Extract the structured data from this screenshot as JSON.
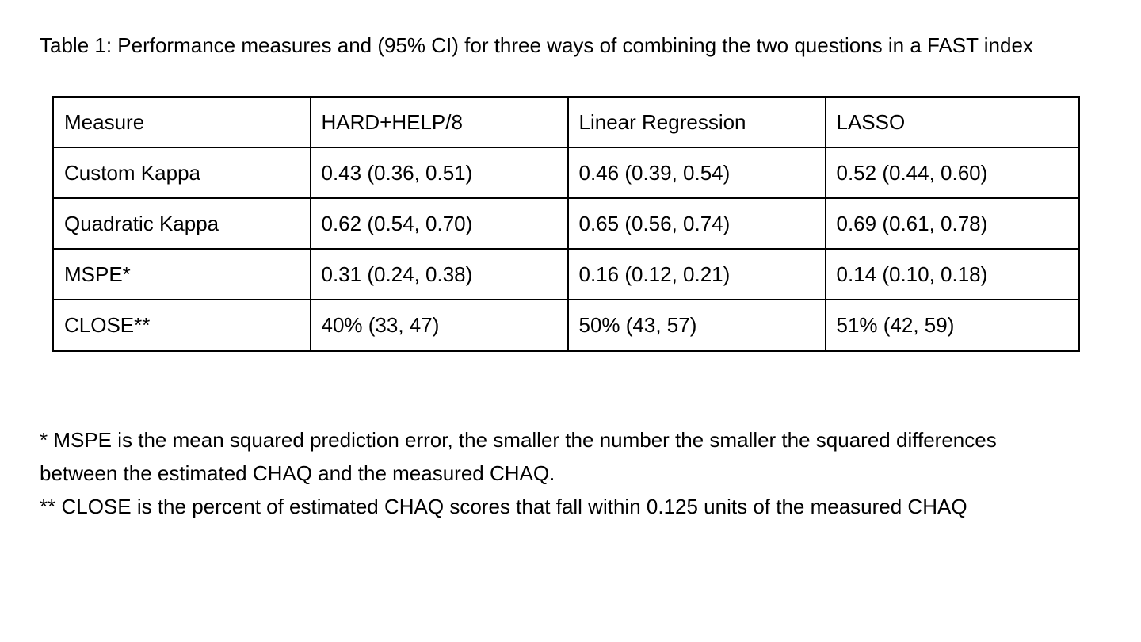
{
  "document": {
    "title": "Table 1: Performance measures and (95% CI) for three ways of combining the two questions in a FAST index"
  },
  "table": {
    "headers": [
      "Measure",
      "HARD+HELP/8",
      "Linear Regression",
      "LASSO"
    ],
    "rows": [
      [
        "Custom Kappa",
        "0.43 (0.36, 0.51)",
        "0.46 (0.39, 0.54)",
        "0.52 (0.44, 0.60)"
      ],
      [
        "Quadratic Kappa",
        "0.62 (0.54, 0.70)",
        "0.65 (0.56, 0.74)",
        "0.69 (0.61, 0.78)"
      ],
      [
        "MSPE*",
        "0.31 (0.24, 0.38)",
        "0.16 (0.12, 0.21)",
        "0.14 (0.10, 0.18)"
      ],
      [
        "CLOSE**",
        "40% (33, 47)",
        "50% (43, 57)",
        "51% (42, 59)"
      ]
    ]
  },
  "footnotes": {
    "mspe": "* MSPE is the mean squared prediction error, the smaller the number the smaller the squared differences between the estimated CHAQ and the measured CHAQ.",
    "close": "** CLOSE is the percent of estimated CHAQ scores that fall within 0.125 units of the measured CHAQ"
  },
  "colors": {
    "text": "#000000",
    "background": "#ffffff",
    "border": "#000000"
  }
}
